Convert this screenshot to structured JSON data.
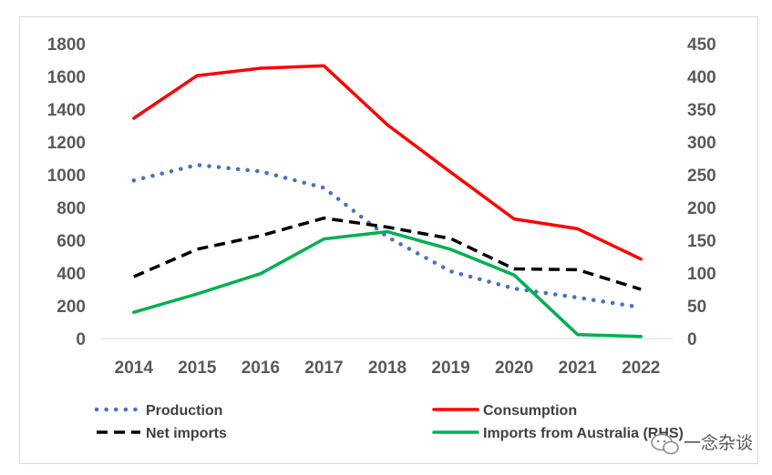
{
  "chart_data": {
    "type": "line",
    "title": "",
    "xlabel": "",
    "ylabel": "",
    "categories": [
      "2014",
      "2015",
      "2016",
      "2017",
      "2018",
      "2019",
      "2020",
      "2021",
      "2022"
    ],
    "ylim_left": [
      0,
      1800
    ],
    "ylim_right": [
      0,
      450
    ],
    "left_ticks": [
      "1800",
      "1600",
      "1400",
      "1200",
      "1000",
      "800",
      "600",
      "400",
      "200",
      "0"
    ],
    "right_ticks": [
      "450",
      "400",
      "350",
      "300",
      "250",
      "200",
      "150",
      "100",
      "50",
      "0"
    ],
    "legend_position": "bottom",
    "series": [
      {
        "name": "Production",
        "axis": "left",
        "color": "#4472c4",
        "style": "dotted",
        "values": [
          965,
          1060,
          1020,
          920,
          620,
          410,
          305,
          250,
          190
        ]
      },
      {
        "name": "Consumption",
        "axis": "left",
        "color": "#ff0000",
        "style": "solid",
        "values": [
          1345,
          1605,
          1650,
          1665,
          1305,
          1015,
          730,
          670,
          485
        ]
      },
      {
        "name": "Net imports",
        "axis": "left",
        "color": "#000000",
        "style": "dashed",
        "values": [
          378,
          545,
          628,
          735,
          680,
          610,
          425,
          420,
          300
        ]
      },
      {
        "name": "Imports from Australia (RHS)",
        "axis": "right",
        "color": "#00b050",
        "style": "solid",
        "values": [
          40,
          68,
          99,
          152,
          163,
          136,
          97,
          6,
          3
        ]
      }
    ]
  },
  "watermark": {
    "text": "一念杂谈"
  }
}
